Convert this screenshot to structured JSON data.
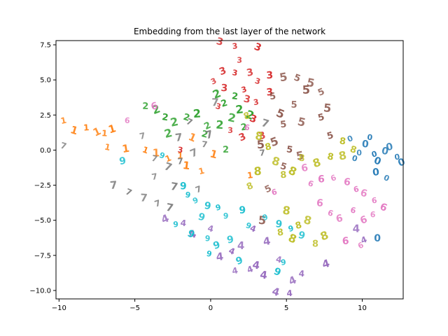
{
  "chart_data": {
    "type": "scatter",
    "title": "Embedding from the last layer of the network",
    "xlabel": "",
    "ylabel": "",
    "xlim": [
      -10.2,
      12.7
    ],
    "ylim": [
      -10.6,
      7.8
    ],
    "xticks": [
      -10,
      -5,
      0,
      5,
      10
    ],
    "yticks": [
      -10.0,
      -7.5,
      -5.0,
      -2.5,
      0.0,
      2.5,
      5.0,
      7.5
    ],
    "xtick_labels": [
      "−10",
      "−5",
      "0",
      "5",
      "10"
    ],
    "ytick_labels": [
      "−10.0",
      "−7.5",
      "−5.0",
      "−2.5",
      "0.0",
      "2.5",
      "5.0",
      "7.5"
    ],
    "grid": false,
    "marker": "digit-glyph",
    "series": [
      {
        "label": "0",
        "color": "#1f77b4",
        "points": [
          [
            9.2,
            0.8
          ],
          [
            10.2,
            0.4
          ],
          [
            10.8,
            -0.3
          ],
          [
            11.5,
            -0.1
          ],
          [
            12.3,
            -0.5
          ],
          [
            11.0,
            -0.8
          ],
          [
            9.8,
            -0.2
          ],
          [
            12.6,
            -0.9
          ],
          [
            10.5,
            0.9
          ],
          [
            11.8,
            0.2
          ],
          [
            9.5,
            -0.6
          ],
          [
            10.9,
            -1.6
          ],
          [
            11.6,
            -2.0
          ],
          [
            11.0,
            -6.3
          ]
        ]
      },
      {
        "label": "1",
        "color": "#ff7f0e",
        "points": [
          [
            -9.7,
            2.1
          ],
          [
            -9.0,
            1.4
          ],
          [
            -8.2,
            1.6
          ],
          [
            -7.5,
            1.3
          ],
          [
            -7.0,
            1.2
          ],
          [
            -6.5,
            1.5
          ],
          [
            -6.8,
            0.2
          ],
          [
            -5.6,
            0.1
          ],
          [
            -4.3,
            0.0
          ],
          [
            -3.6,
            -0.2
          ],
          [
            -2.8,
            -0.6
          ],
          [
            -1.6,
            -1.1
          ],
          [
            -0.6,
            -1.5
          ],
          [
            0.2,
            -0.3
          ],
          [
            2.6,
            -1.8
          ],
          [
            -1.2,
            0.9
          ],
          [
            -2.0,
            -0.4
          ]
        ]
      },
      {
        "label": "2",
        "color": "#2ca02c",
        "points": [
          [
            -4.3,
            3.1
          ],
          [
            -3.6,
            2.9
          ],
          [
            -3.0,
            2.3
          ],
          [
            -2.4,
            2.0
          ],
          [
            -1.6,
            2.3
          ],
          [
            -0.9,
            2.6
          ],
          [
            -0.2,
            1.7
          ],
          [
            0.6,
            1.8
          ],
          [
            0.9,
            3.3
          ],
          [
            1.4,
            2.3
          ],
          [
            2.2,
            1.6
          ],
          [
            2.6,
            2.5
          ],
          [
            1.0,
            0.0
          ],
          [
            0.4,
            4.0
          ],
          [
            1.6,
            3.8
          ],
          [
            -2.8,
            1.2
          ],
          [
            -0.4,
            1.1
          ],
          [
            1.9,
            2.9
          ]
        ]
      },
      {
        "label": "3",
        "color": "#d62728",
        "points": [
          [
            0.6,
            7.7
          ],
          [
            1.6,
            7.4
          ],
          [
            3.1,
            7.3
          ],
          [
            1.9,
            6.4
          ],
          [
            0.8,
            5.6
          ],
          [
            1.6,
            5.5
          ],
          [
            2.6,
            5.5
          ],
          [
            3.1,
            4.9
          ],
          [
            3.9,
            5.3
          ],
          [
            0.2,
            4.9
          ],
          [
            0.9,
            4.4
          ],
          [
            2.2,
            4.3
          ],
          [
            2.4,
            3.6
          ],
          [
            3.0,
            3.4
          ],
          [
            2.8,
            2.2
          ],
          [
            1.3,
            1.4
          ],
          [
            2.1,
            0.9
          ],
          [
            -2.0,
            0.0
          ],
          [
            3.4,
            1.0
          ],
          [
            0.5,
            3.1
          ],
          [
            3.9,
            4.1
          ]
        ]
      },
      {
        "label": "4",
        "color": "#9467bd",
        "points": [
          [
            -3.0,
            -4.9
          ],
          [
            -1.8,
            -5.2
          ],
          [
            -1.2,
            -6.0
          ],
          [
            0.0,
            -5.6
          ],
          [
            0.6,
            -7.6
          ],
          [
            1.4,
            -7.2
          ],
          [
            2.0,
            -6.8
          ],
          [
            2.6,
            -8.5
          ],
          [
            3.0,
            -8.2
          ],
          [
            1.6,
            -8.6
          ],
          [
            4.3,
            -10.1
          ],
          [
            5.2,
            -10.2
          ],
          [
            5.4,
            -9.3
          ],
          [
            6.0,
            -8.8
          ],
          [
            7.6,
            -8.1
          ],
          [
            4.5,
            -7.8
          ],
          [
            3.7,
            -6.5
          ],
          [
            2.8,
            -5.6
          ],
          [
            9.6,
            -5.6
          ],
          [
            10.1,
            -6.4
          ],
          [
            3.5,
            -8.9
          ]
        ]
      },
      {
        "label": "5",
        "color": "#8c564b",
        "points": [
          [
            4.8,
            5.2
          ],
          [
            5.7,
            5.1
          ],
          [
            6.3,
            4.3
          ],
          [
            7.3,
            4.1
          ],
          [
            7.7,
            3.0
          ],
          [
            7.3,
            2.3
          ],
          [
            6.0,
            2.0
          ],
          [
            4.8,
            1.8
          ],
          [
            4.6,
            2.6
          ],
          [
            5.5,
            3.2
          ],
          [
            4.2,
            0.6
          ],
          [
            5.2,
            0.0
          ],
          [
            5.9,
            -0.4
          ],
          [
            4.8,
            -1.2
          ],
          [
            3.3,
            0.4
          ],
          [
            3.8,
            -2.8
          ],
          [
            3.4,
            -5.0
          ],
          [
            7.9,
            1.0
          ],
          [
            6.6,
            4.8
          ],
          [
            4.1,
            3.8
          ]
        ]
      },
      {
        "label": "6",
        "color": "#e377c2",
        "points": [
          [
            -5.5,
            2.1
          ],
          [
            -3.7,
            3.1
          ],
          [
            2.4,
            1.6
          ],
          [
            6.2,
            -1.3
          ],
          [
            6.6,
            -2.4
          ],
          [
            7.3,
            -2.1
          ],
          [
            8.1,
            -2.0
          ],
          [
            9.0,
            -2.3
          ],
          [
            9.6,
            -2.8
          ],
          [
            10.1,
            -3.1
          ],
          [
            10.8,
            -3.6
          ],
          [
            11.4,
            -4.1
          ],
          [
            10.7,
            -4.6
          ],
          [
            10.1,
            -5.0
          ],
          [
            9.4,
            -4.3
          ],
          [
            8.5,
            -4.9
          ],
          [
            7.9,
            -4.5
          ],
          [
            8.9,
            -6.5
          ],
          [
            9.9,
            -6.8
          ],
          [
            7.2,
            -3.8
          ],
          [
            4.2,
            -3.0
          ]
        ]
      },
      {
        "label": "7",
        "color": "#7f7f7f",
        "points": [
          [
            -9.7,
            0.3
          ],
          [
            -6.4,
            -2.5
          ],
          [
            -5.4,
            -3.0
          ],
          [
            -4.4,
            -3.4
          ],
          [
            -3.5,
            -3.8
          ],
          [
            -2.7,
            -4.1
          ],
          [
            -3.7,
            -1.9
          ],
          [
            -2.8,
            -1.2
          ],
          [
            -2.0,
            -0.8
          ],
          [
            -1.1,
            -0.2
          ],
          [
            -0.4,
            0.4
          ],
          [
            -0.1,
            1.1
          ],
          [
            -3.7,
            -0.6
          ],
          [
            -2.1,
            0.9
          ],
          [
            -1.4,
            2.0
          ],
          [
            0.3,
            3.4
          ],
          [
            -0.8,
            -2.8
          ],
          [
            -2.4,
            -2.6
          ],
          [
            -4.5,
            1.0
          ],
          [
            3.6,
            1.9
          ],
          [
            3.4,
            -0.2
          ]
        ]
      },
      {
        "label": "8",
        "color": "#bcbd22",
        "points": [
          [
            2.4,
            2.4
          ],
          [
            3.2,
            1.0
          ],
          [
            3.8,
            0.2
          ],
          [
            4.3,
            -0.8
          ],
          [
            4.8,
            -1.8
          ],
          [
            5.4,
            -1.5
          ],
          [
            6.0,
            -0.6
          ],
          [
            7.0,
            -0.9
          ],
          [
            7.9,
            -0.5
          ],
          [
            8.7,
            -0.4
          ],
          [
            9.4,
            0.0
          ],
          [
            3.1,
            -1.5
          ],
          [
            2.6,
            -2.6
          ],
          [
            5.0,
            -4.3
          ],
          [
            5.8,
            -5.4
          ],
          [
            6.4,
            -5.0
          ],
          [
            4.6,
            -5.9
          ],
          [
            5.4,
            -6.3
          ],
          [
            6.9,
            -6.7
          ],
          [
            7.5,
            -6.1
          ],
          [
            8.7,
            0.6
          ]
        ]
      },
      {
        "label": "9",
        "color": "#17becf",
        "points": [
          [
            -5.8,
            -0.8
          ],
          [
            -3.2,
            -0.4
          ],
          [
            -1.8,
            -2.6
          ],
          [
            -1.0,
            -3.6
          ],
          [
            -0.2,
            -4.0
          ],
          [
            0.5,
            -4.1
          ],
          [
            -0.6,
            -4.8
          ],
          [
            -2.3,
            -5.3
          ],
          [
            -1.3,
            -6.0
          ],
          [
            -0.2,
            -6.3
          ],
          [
            0.4,
            -6.8
          ],
          [
            -0.1,
            -7.4
          ],
          [
            1.3,
            -6.4
          ],
          [
            2.5,
            -5.4
          ],
          [
            2.1,
            -4.3
          ],
          [
            3.6,
            -4.8
          ],
          [
            4.5,
            -5.3
          ],
          [
            5.3,
            -5.6
          ],
          [
            6.0,
            -6.1
          ],
          [
            4.8,
            -8.0
          ],
          [
            4.4,
            -8.7
          ],
          [
            1.0,
            -4.7
          ],
          [
            1.9,
            -7.9
          ],
          [
            -1.5,
            -3.2
          ]
        ]
      }
    ]
  }
}
